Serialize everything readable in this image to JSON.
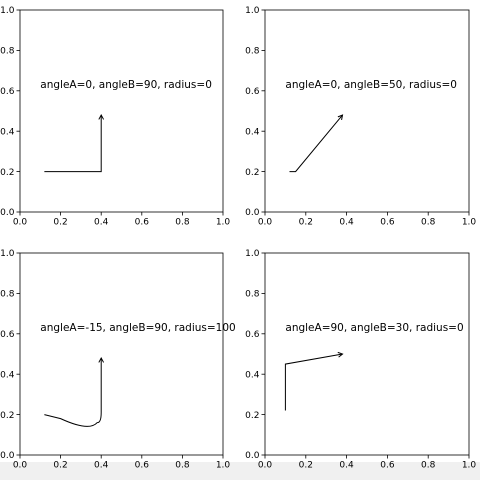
{
  "chart_data": [
    {
      "type": "line",
      "xlim": [
        0,
        1
      ],
      "ylim": [
        0,
        1
      ],
      "xticks": [
        "0.0",
        "0.2",
        "0.4",
        "0.6",
        "0.8",
        "1.0"
      ],
      "yticks": [
        "0.0",
        "0.2",
        "0.4",
        "0.6",
        "0.8",
        "1.0"
      ],
      "annotation": {
        "text": "angleA=0, angleB=90, radius=0",
        "x": 0.1,
        "y": 0.6
      },
      "connection": {
        "points": [
          [
            0.12,
            0.2
          ],
          [
            0.4,
            0.2
          ],
          [
            0.4,
            0.48
          ]
        ],
        "head_end": [
          0.4,
          0.48
        ]
      }
    },
    {
      "type": "line",
      "xlim": [
        0,
        1
      ],
      "ylim": [
        0,
        1
      ],
      "xticks": [
        "0.0",
        "0.2",
        "0.4",
        "0.6",
        "0.8",
        "1.0"
      ],
      "yticks": [
        "0.0",
        "0.2",
        "0.4",
        "0.6",
        "0.8",
        "1.0"
      ],
      "annotation": {
        "text": "angleA=0, angleB=50, radius=0",
        "x": 0.1,
        "y": 0.6
      },
      "connection": {
        "points": [
          [
            0.12,
            0.2
          ],
          [
            0.15,
            0.2
          ],
          [
            0.38,
            0.48
          ]
        ],
        "head_end": [
          0.38,
          0.48
        ]
      }
    },
    {
      "type": "line",
      "xlim": [
        0,
        1
      ],
      "ylim": [
        0,
        1
      ],
      "xticks": [
        "0.0",
        "0.2",
        "0.4",
        "0.6",
        "0.8",
        "1.0"
      ],
      "yticks": [
        "0.0",
        "0.2",
        "0.4",
        "0.6",
        "0.8",
        "1.0"
      ],
      "annotation": {
        "text": "angleA=-15, angleB=90, radius=100",
        "x": 0.1,
        "y": 0.6
      },
      "connection": {
        "points": [
          [
            0.12,
            0.2
          ],
          [
            0.2,
            0.18
          ],
          [
            0.28,
            0.155
          ],
          [
            0.34,
            0.145
          ],
          [
            0.38,
            0.16
          ],
          [
            0.4,
            0.21
          ],
          [
            0.4,
            0.3
          ],
          [
            0.4,
            0.48
          ]
        ],
        "head_end": [
          0.4,
          0.48
        ]
      }
    },
    {
      "type": "line",
      "xlim": [
        0,
        1
      ],
      "ylim": [
        0,
        1
      ],
      "xticks": [
        "0.0",
        "0.2",
        "0.4",
        "0.6",
        "0.8",
        "1.0"
      ],
      "yticks": [
        "0.0",
        "0.2",
        "0.4",
        "0.6",
        "0.8",
        "1.0"
      ],
      "annotation": {
        "text": "angleA=90, angleB=30, radius=0",
        "x": 0.1,
        "y": 0.6
      },
      "connection": {
        "points": [
          [
            0.1,
            0.22
          ],
          [
            0.1,
            0.45
          ],
          [
            0.38,
            0.5
          ]
        ],
        "head_end": [
          0.38,
          0.5
        ]
      }
    }
  ]
}
